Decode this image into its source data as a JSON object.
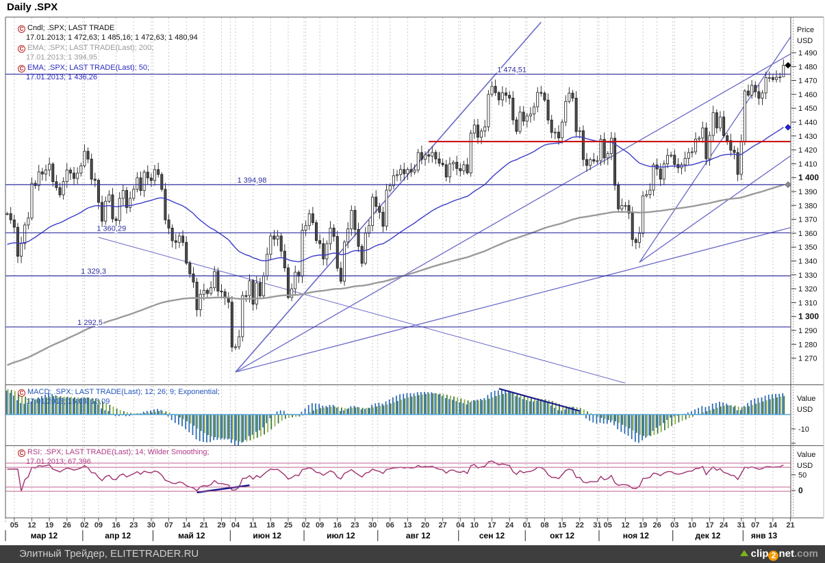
{
  "title": "Daily .SPX",
  "icons": {
    "series_icon": "red-c-circle-icon",
    "logo_icon": "green-up-arrow-icon",
    "last_price_marker": "black-diamond-icon",
    "ema50_marker": "blue-diamond-icon",
    "ema200_marker": "gray-diamond-icon"
  },
  "legends": {
    "cndl": {
      "line1": "Cndl; .SPX; LAST TRADE",
      "line2": "17.01.2013; 1 472,63; 1 485,16; 1 472,63; 1 480,94"
    },
    "ema200": {
      "line1": "EMA; .SPX; LAST TRADE(Last); 200;",
      "line2": "17.01.2013; 1 394,95"
    },
    "ema50": {
      "line1": "EMA; .SPX; LAST TRADE(Last); 50;",
      "line2": "17.01.2013; 1 436,26"
    },
    "macd": {
      "line1": "MACD; .SPX; LAST TRADE(Last); 12; 26; 9; Exponential;",
      "line2": "17.01.2013; 15,03; 13,09"
    },
    "rsi": {
      "line1": "RSI; .SPX; LAST TRADE(Last); 14; Wilder Smoothing;",
      "line2": "17.01.2013; 67,396"
    }
  },
  "axes": {
    "price": {
      "header1": "Price",
      "header2": "USD",
      "tick_min": 1270,
      "tick_max": 1490,
      "tick_step": 10,
      "bold_ticks": [
        1300,
        1400
      ]
    },
    "macd": {
      "header1": "Value",
      "header2": "USD",
      "tick_label": "-10",
      "tick_value": -10,
      "extra_tick_value": -20
    },
    "rsi": {
      "header1": "Value",
      "header2": "USD",
      "tick50": "50",
      "tick0": "0"
    }
  },
  "footer": {
    "text": "Элитный Трейдер, ELITETRADER.RU",
    "logo": {
      "clip": "clip",
      "two": "2",
      "net": "net",
      "dotcom": ".com"
    }
  },
  "chart_data": {
    "type": "candlestick",
    "symbol": ".SPX",
    "interval": "Daily",
    "price_axis": {
      "ylim": [
        1251,
        1516
      ],
      "grid_step": 10
    },
    "closes": [
      1374.1,
      1369.6,
      1364.3,
      1343.4,
      1352.6,
      1365.9,
      1370.9,
      1395.9,
      1394.3,
      1404.2,
      1402.6,
      1405.5,
      1409.8,
      1397.1,
      1392.8,
      1387.6,
      1397.1,
      1405.5,
      1403.3,
      1399.4,
      1403.3,
      1408.5,
      1419.0,
      1413.4,
      1398.9,
      1398.1,
      1382.2,
      1368.7,
      1383.0,
      1387.6,
      1370.3,
      1369.1,
      1385.1,
      1390.8,
      1378.5,
      1385.1,
      1391.6,
      1399.9,
      1390.7,
      1404.0,
      1399.8,
      1397.9,
      1405.8,
      1402.3,
      1391.6,
      1369.6,
      1363.7,
      1354.6,
      1353.4,
      1358.0,
      1353.4,
      1338.4,
      1330.7,
      1324.8,
      1304.9,
      1316.0,
      1318.9,
      1316.6,
      1320.7,
      1332.4,
      1318.3,
      1317.8,
      1313.3,
      1310.3,
      1278.0,
      1278.2,
      1285.5,
      1315.1,
      1315.0,
      1325.7,
      1308.9,
      1324.2,
      1314.9,
      1329.1,
      1344.8,
      1358.0,
      1355.7,
      1358.0,
      1347.1,
      1335.0,
      1313.7,
      1320.0,
      1331.9,
      1329.0,
      1362.2,
      1365.5,
      1374.0,
      1367.6,
      1354.7,
      1352.5,
      1341.5,
      1352.5,
      1363.7,
      1357.7,
      1334.8,
      1325.4,
      1353.6,
      1363.1,
      1376.5,
      1362.7,
      1350.5,
      1338.3,
      1360.0,
      1365.5,
      1386.0,
      1379.3,
      1375.1,
      1365.0,
      1391.0,
      1394.2,
      1401.4,
      1402.2,
      1405.9,
      1402.8,
      1405.9,
      1404.1,
      1405.5,
      1418.1,
      1413.2,
      1416.5,
      1415.5,
      1418.2,
      1413.5,
      1410.4,
      1409.3,
      1400.5,
      1409.9,
      1411.1,
      1406.6,
      1404.9,
      1409.3,
      1403.4,
      1432.1,
      1437.9,
      1429.1,
      1433.6,
      1436.6,
      1460.0,
      1465.8,
      1461.2,
      1456.0,
      1461.1,
      1459.3,
      1457.3,
      1441.6,
      1433.3,
      1447.2,
      1440.7,
      1444.5,
      1445.8,
      1451.0,
      1461.4,
      1460.9,
      1455.9,
      1441.5,
      1432.6,
      1432.8,
      1428.6,
      1440.1,
      1454.9,
      1460.9,
      1457.3,
      1433.2,
      1433.8,
      1413.1,
      1408.8,
      1413.0,
      1411.9,
      1412.2,
      1427.6,
      1414.2,
      1417.3,
      1428.4,
      1394.5,
      1377.5,
      1379.9,
      1380.0,
      1374.5,
      1355.5,
      1353.3,
      1359.9,
      1386.9,
      1387.8,
      1391.0,
      1409.2,
      1406.3,
      1398.9,
      1409.9,
      1416.0,
      1416.2,
      1409.5,
      1407.1,
      1409.3,
      1413.9,
      1418.1,
      1418.6,
      1427.8,
      1428.5,
      1435.8,
      1413.6,
      1430.4,
      1446.8,
      1435.8,
      1443.7,
      1430.2,
      1426.7,
      1419.8,
      1418.1,
      1402.4,
      1426.2,
      1462.4,
      1459.4,
      1466.5,
      1461.9,
      1457.2,
      1461.0,
      1472.1,
      1472.1,
      1470.7,
      1472.3,
      1472.6,
      1480.9
    ],
    "last_candle": {
      "date": "17.01.2013",
      "open": 1472.63,
      "high": 1485.16,
      "low": 1472.63,
      "close": 1480.94
    },
    "indicators": {
      "ema50": {
        "period": 50,
        "last": 1436.26,
        "seed": 1352
      },
      "ema200": {
        "period": 200,
        "last": 1394.95,
        "seed": 1265
      },
      "macd": {
        "fast": 12,
        "slow": 26,
        "signal": 9,
        "last": 15.03,
        "signal_last": 13.09
      },
      "rsi": {
        "period": 14,
        "smoothing": "Wilder",
        "last": 67.396
      }
    },
    "hlines": [
      {
        "price": 1474.51,
        "label": "1 474,51",
        "label_day": 140
      },
      {
        "price": 1394.98,
        "label": "1 394,98",
        "label_day": 66
      },
      {
        "price": 1360.29,
        "label": "1 360,29",
        "label_day": 26
      },
      {
        "price": 1329.3,
        "label": "1 329,3",
        "label_day": 21.5
      },
      {
        "price": 1292.5,
        "label": "1 292,5",
        "label_day": 20.5
      }
    ],
    "red_line": {
      "price": 1426,
      "from_day": 120
    },
    "trendlines": [
      {
        "d1": 65,
        "p1": 1260,
        "d2": 152,
        "p2": 1512,
        "w": 1.6
      },
      {
        "d1": 65,
        "p1": 1260,
        "d2": 225,
        "p2": 1492,
        "w": 1.3
      },
      {
        "d1": 65,
        "p1": 1260,
        "d2": 226,
        "p2": 1366,
        "w": 1.3
      },
      {
        "d1": 180,
        "p1": 1339,
        "d2": 224,
        "p2": 1505,
        "w": 1.3
      },
      {
        "d1": 180,
        "p1": 1339,
        "d2": 226,
        "p2": 1421,
        "w": 1.3
      },
      {
        "d1": 26,
        "p1": 1357,
        "d2": 176,
        "p2": 1252,
        "w": 1.0
      }
    ],
    "macd_trendline": {
      "d1": 140,
      "v1": 18,
      "d2": 163,
      "v2": 2.5
    },
    "rsi_trendline": {
      "d1": 54,
      "v1": 21,
      "d2": 69,
      "v2": 33
    },
    "rsi_band_values": [
      70,
      63,
      30,
      23
    ],
    "xaxis": {
      "months": [
        {
          "label": "мар 12",
          "start": 0,
          "count": 22,
          "ticks": [
            [
              "05",
              2
            ],
            [
              "12",
              7
            ],
            [
              "19",
              12
            ],
            [
              "26",
              17
            ]
          ]
        },
        {
          "label": "апр 12",
          "start": 22,
          "count": 20,
          "ticks": [
            [
              "02",
              22
            ],
            [
              "09",
              26
            ],
            [
              "16",
              31
            ],
            [
              "23",
              36
            ],
            [
              "30",
              41
            ]
          ]
        },
        {
          "label": "май 12",
          "start": 42,
          "count": 22,
          "ticks": [
            [
              "07",
              46
            ],
            [
              "14",
              51
            ],
            [
              "21",
              56
            ],
            [
              "29",
              61
            ]
          ]
        },
        {
          "label": "июн 12",
          "start": 64,
          "count": 21,
          "ticks": [
            [
              "04",
              65
            ],
            [
              "11",
              70
            ],
            [
              "18",
              75
            ],
            [
              "25",
              80
            ]
          ]
        },
        {
          "label": "июл 12",
          "start": 85,
          "count": 21,
          "ticks": [
            [
              "02",
              85
            ],
            [
              "09",
              89
            ],
            [
              "16",
              94
            ],
            [
              "23",
              99
            ],
            [
              "30",
              104
            ]
          ]
        },
        {
          "label": "авг 12",
          "start": 106,
          "count": 23,
          "ticks": [
            [
              "06",
              109
            ],
            [
              "13",
              114
            ],
            [
              "20",
              119
            ],
            [
              "27",
              124
            ]
          ]
        },
        {
          "label": "сен 12",
          "start": 129,
          "count": 19,
          "ticks": [
            [
              "04",
              129
            ],
            [
              "10",
              133
            ],
            [
              "17",
              138
            ],
            [
              "24",
              143
            ]
          ]
        },
        {
          "label": "окт 12",
          "start": 148,
          "count": 21,
          "ticks": [
            [
              "01",
              148
            ],
            [
              "08",
              153
            ],
            [
              "15",
              158
            ],
            [
              "22",
              163
            ],
            [
              "31",
              168
            ]
          ]
        },
        {
          "label": "ноя 12",
          "start": 169,
          "count": 21,
          "ticks": [
            [
              "05",
              171
            ],
            [
              "12",
              176
            ],
            [
              "19",
              181
            ],
            [
              "26",
              185
            ]
          ]
        },
        {
          "label": "дек 12",
          "start": 190,
          "count": 20,
          "ticks": [
            [
              "03",
              190
            ],
            [
              "10",
              195
            ],
            [
              "17",
              200
            ],
            [
              "24",
              204
            ],
            [
              "31",
              209
            ]
          ]
        },
        {
          "label": "янв 13",
          "start": 210,
          "count": 12,
          "ticks": [
            [
              "07",
              213
            ],
            [
              "14",
              218
            ],
            [
              "21",
              223
            ]
          ]
        }
      ]
    },
    "colors": {
      "hline_navy": "#2d2da0",
      "trend_slate": "#6868c8",
      "red_line": "#cc1111",
      "candle_stroke": "#1a1a1a",
      "candle_down_fill": "#4d4d4d",
      "candle_up_fill": "#ffffff",
      "ema50": "#3a3ac8",
      "ema200": "#9a9a9a",
      "macd_bar_blue": "#2e6db4",
      "macd_bar_green": "#3d7a3d",
      "macd_bar_green_light": "#8fae4a",
      "macd_zero": "#5aa7d8",
      "macd_trend": "#1a1a8c",
      "rsi_line": "#9e2f6e",
      "rsi_band": "#c06090",
      "rsi_trend": "#1a1a8c",
      "grid": "#c9c9c9",
      "frame": "#555555",
      "footer_bg": "#3e3e3e"
    }
  }
}
